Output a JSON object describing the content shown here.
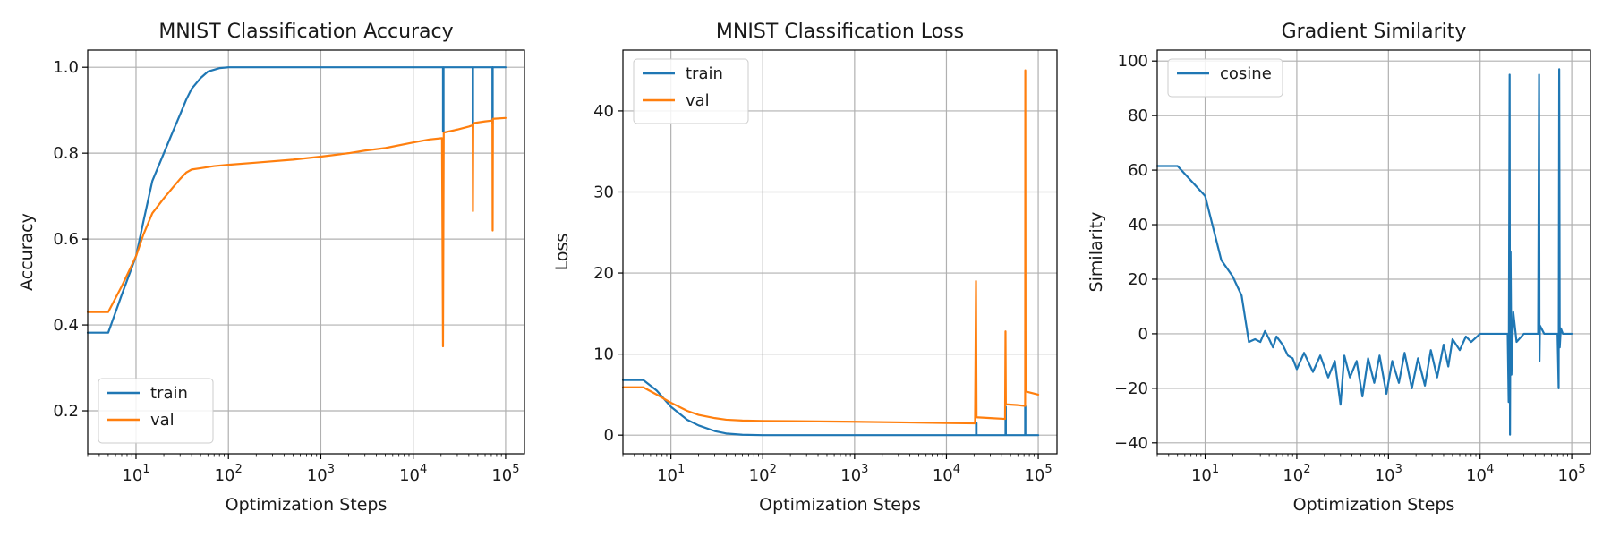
{
  "chart_data": [
    {
      "type": "line",
      "title": "MNIST Classification Accuracy",
      "xlabel": "Optimization Steps",
      "ylabel": "Accuracy",
      "xscale": "log",
      "xlim": [
        3,
        160000
      ],
      "ylim": [
        0.1,
        1.04
      ],
      "xticks": [
        10,
        100,
        1000,
        10000,
        100000
      ],
      "yticks": [
        0.2,
        0.4,
        0.6,
        0.8,
        1.0
      ],
      "ytick_labels": [
        "0.2",
        "0.4",
        "0.6",
        "0.8",
        "1.0"
      ],
      "grid": true,
      "legend": "lower-left",
      "series": [
        {
          "name": "train",
          "color": "#1f77b4",
          "points": [
            [
              3,
              0.382
            ],
            [
              5,
              0.382
            ],
            [
              7,
              0.47
            ],
            [
              10,
              0.56
            ],
            [
              12,
              0.64
            ],
            [
              15,
              0.735
            ],
            [
              20,
              0.8
            ],
            [
              25,
              0.85
            ],
            [
              30,
              0.89
            ],
            [
              35,
              0.925
            ],
            [
              40,
              0.95
            ],
            [
              50,
              0.975
            ],
            [
              60,
              0.99
            ],
            [
              80,
              0.998
            ],
            [
              100,
              1.0
            ],
            [
              1000,
              1.0
            ],
            [
              10000,
              1.0
            ],
            [
              21000,
              1.0
            ],
            [
              21000,
              0.85
            ],
            [
              21300,
              0.85
            ],
            [
              21300,
              1.0
            ],
            [
              44000,
              1.0
            ],
            [
              44000,
              0.86
            ],
            [
              44400,
              0.86
            ],
            [
              44400,
              1.0
            ],
            [
              72000,
              1.0
            ],
            [
              72000,
              0.87
            ],
            [
              72500,
              0.87
            ],
            [
              72500,
              1.0
            ],
            [
              100000,
              1.0
            ]
          ]
        },
        {
          "name": "val",
          "color": "#ff7f0e",
          "points": [
            [
              3,
              0.43
            ],
            [
              5,
              0.43
            ],
            [
              7,
              0.49
            ],
            [
              10,
              0.56
            ],
            [
              12,
              0.61
            ],
            [
              15,
              0.66
            ],
            [
              20,
              0.695
            ],
            [
              25,
              0.72
            ],
            [
              30,
              0.74
            ],
            [
              35,
              0.755
            ],
            [
              40,
              0.762
            ],
            [
              50,
              0.765
            ],
            [
              70,
              0.77
            ],
            [
              100,
              0.773
            ],
            [
              200,
              0.778
            ],
            [
              500,
              0.785
            ],
            [
              1000,
              0.792
            ],
            [
              2000,
              0.8
            ],
            [
              3000,
              0.806
            ],
            [
              5000,
              0.812
            ],
            [
              10000,
              0.825
            ],
            [
              15000,
              0.832
            ],
            [
              20500,
              0.835
            ],
            [
              21000,
              0.35
            ],
            [
              21400,
              0.848
            ],
            [
              30000,
              0.855
            ],
            [
              40000,
              0.862
            ],
            [
              44000,
              0.865
            ],
            [
              44300,
              0.665
            ],
            [
              44700,
              0.87
            ],
            [
              60000,
              0.874
            ],
            [
              72000,
              0.876
            ],
            [
              72400,
              0.62
            ],
            [
              72900,
              0.88
            ],
            [
              100000,
              0.882
            ]
          ]
        }
      ]
    },
    {
      "type": "line",
      "title": "MNIST Classification Loss",
      "xlabel": "Optimization Steps",
      "ylabel": "Loss",
      "xscale": "log",
      "xlim": [
        3,
        160000
      ],
      "ylim": [
        -2.3,
        47.5
      ],
      "xticks": [
        10,
        100,
        1000,
        10000,
        100000
      ],
      "yticks": [
        0,
        10,
        20,
        30,
        40
      ],
      "ytick_labels": [
        "0",
        "10",
        "20",
        "30",
        "40"
      ],
      "grid": true,
      "legend": "upper-left",
      "series": [
        {
          "name": "train",
          "color": "#1f77b4",
          "points": [
            [
              3,
              6.8
            ],
            [
              5,
              6.8
            ],
            [
              7,
              5.5
            ],
            [
              10,
              3.5
            ],
            [
              15,
              1.9
            ],
            [
              20,
              1.2
            ],
            [
              30,
              0.5
            ],
            [
              40,
              0.2
            ],
            [
              60,
              0.05
            ],
            [
              100,
              0
            ],
            [
              10000,
              0
            ],
            [
              21000,
              0
            ],
            [
              21000,
              1.5
            ],
            [
              21300,
              1.5
            ],
            [
              21300,
              0
            ],
            [
              44000,
              0
            ],
            [
              44000,
              3.5
            ],
            [
              44400,
              3.5
            ],
            [
              44400,
              0
            ],
            [
              72000,
              0
            ],
            [
              72000,
              3.6
            ],
            [
              72500,
              3.6
            ],
            [
              72500,
              0
            ],
            [
              100000,
              0
            ]
          ]
        },
        {
          "name": "val",
          "color": "#ff7f0e",
          "points": [
            [
              3,
              5.9
            ],
            [
              5,
              5.9
            ],
            [
              7,
              5.0
            ],
            [
              10,
              4.0
            ],
            [
              15,
              3.0
            ],
            [
              20,
              2.5
            ],
            [
              30,
              2.1
            ],
            [
              40,
              1.9
            ],
            [
              60,
              1.8
            ],
            [
              100,
              1.75
            ],
            [
              1000,
              1.65
            ],
            [
              10000,
              1.5
            ],
            [
              20500,
              1.45
            ],
            [
              21000,
              19.0
            ],
            [
              21300,
              2.2
            ],
            [
              30000,
              2.1
            ],
            [
              43500,
              2.0
            ],
            [
              44000,
              12.8
            ],
            [
              44400,
              3.8
            ],
            [
              60000,
              3.7
            ],
            [
              72000,
              3.6
            ],
            [
              72300,
              45.0
            ],
            [
              72800,
              5.4
            ],
            [
              100000,
              5.0
            ]
          ]
        }
      ]
    },
    {
      "type": "line",
      "title": "Gradient Similarity",
      "xlabel": "Optimization Steps",
      "ylabel": "Similarity",
      "xscale": "log",
      "xlim": [
        3,
        160000
      ],
      "ylim": [
        -44,
        104
      ],
      "xticks": [
        10,
        100,
        1000,
        10000,
        100000
      ],
      "yticks": [
        -40,
        -20,
        0,
        20,
        40,
        60,
        80,
        100
      ],
      "ytick_labels": [
        "−40",
        "−20",
        "0",
        "20",
        "40",
        "60",
        "80",
        "100"
      ],
      "grid": true,
      "legend": "upper-left",
      "series": [
        {
          "name": "cosine",
          "color": "#1f77b4",
          "points": [
            [
              3,
              61.5
            ],
            [
              5,
              61.5
            ],
            [
              10,
              50.5
            ],
            [
              15,
              27
            ],
            [
              20,
              21
            ],
            [
              25,
              14
            ],
            [
              30,
              -3
            ],
            [
              35,
              -2
            ],
            [
              40,
              -3
            ],
            [
              45,
              1
            ],
            [
              50,
              -2
            ],
            [
              55,
              -5
            ],
            [
              60,
              -1
            ],
            [
              70,
              -4
            ],
            [
              80,
              -8
            ],
            [
              90,
              -9
            ],
            [
              100,
              -13
            ],
            [
              120,
              -7
            ],
            [
              150,
              -14
            ],
            [
              180,
              -8
            ],
            [
              220,
              -16
            ],
            [
              260,
              -10
            ],
            [
              300,
              -26
            ],
            [
              330,
              -8
            ],
            [
              380,
              -16
            ],
            [
              450,
              -10
            ],
            [
              520,
              -23
            ],
            [
              600,
              -9
            ],
            [
              700,
              -18
            ],
            [
              800,
              -8
            ],
            [
              950,
              -22
            ],
            [
              1100,
              -10
            ],
            [
              1300,
              -18
            ],
            [
              1500,
              -7
            ],
            [
              1800,
              -20
            ],
            [
              2100,
              -9
            ],
            [
              2500,
              -19
            ],
            [
              2900,
              -6
            ],
            [
              3400,
              -16
            ],
            [
              4000,
              -4
            ],
            [
              4500,
              -12
            ],
            [
              5000,
              -2
            ],
            [
              6000,
              -6
            ],
            [
              7000,
              -1
            ],
            [
              8000,
              -3
            ],
            [
              10000,
              0
            ],
            [
              20000,
              0
            ],
            [
              20500,
              -25
            ],
            [
              21000,
              95
            ],
            [
              21200,
              -37
            ],
            [
              21500,
              30
            ],
            [
              22000,
              -15
            ],
            [
              23000,
              8
            ],
            [
              25000,
              -3
            ],
            [
              30000,
              0
            ],
            [
              43000,
              0
            ],
            [
              44000,
              95
            ],
            [
              44500,
              -10
            ],
            [
              45000,
              3
            ],
            [
              50000,
              0
            ],
            [
              70000,
              0
            ],
            [
              72000,
              -20
            ],
            [
              73000,
              97
            ],
            [
              74000,
              -5
            ],
            [
              76000,
              2
            ],
            [
              80000,
              0
            ],
            [
              100000,
              0
            ]
          ]
        }
      ]
    }
  ]
}
